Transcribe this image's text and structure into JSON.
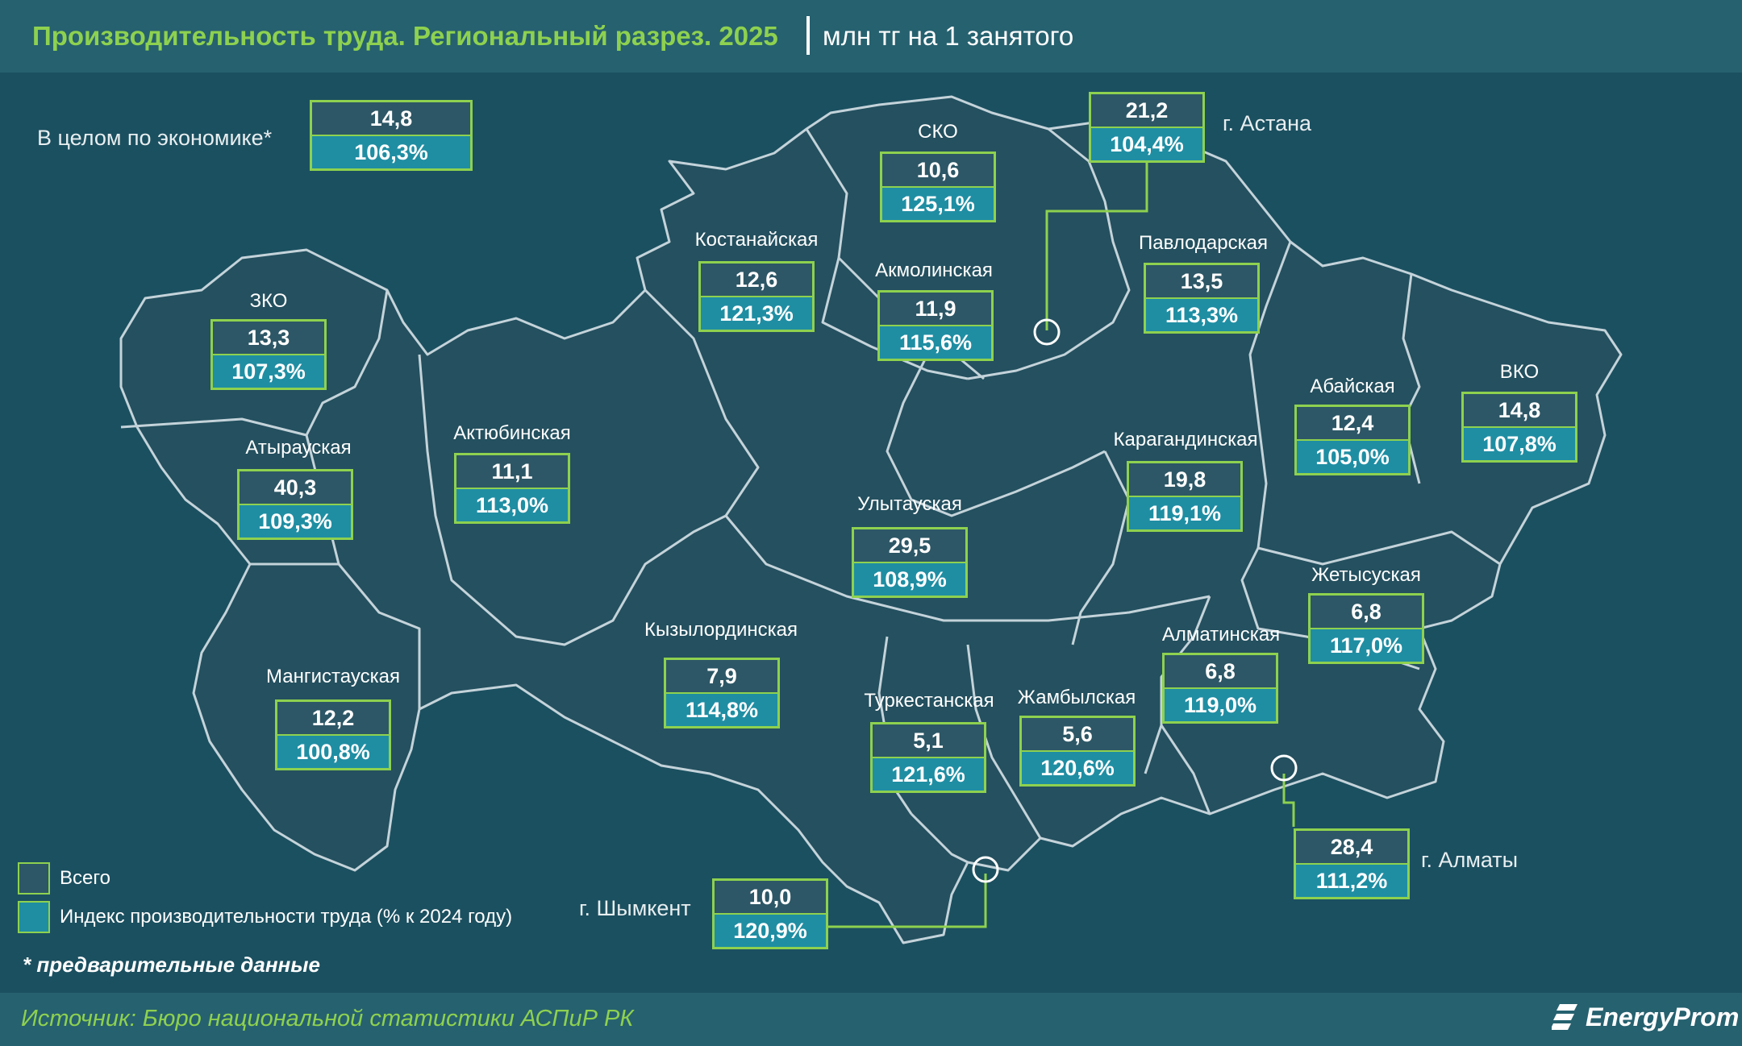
{
  "title": "Производительность труда. Региональный разрез. 2025",
  "units": "млн тг на 1 занятого",
  "overall": {
    "label": "В целом по экономике*",
    "total": "14,8",
    "index": "106,3%"
  },
  "regions": [
    {
      "id": "zko",
      "name": "ЗКО",
      "total": "13,3",
      "index": "107,3%"
    },
    {
      "id": "atyrau",
      "name": "Атырауская",
      "total": "40,3",
      "index": "109,3%"
    },
    {
      "id": "aktobe",
      "name": "Актюбинская",
      "total": "11,1",
      "index": "113,0%"
    },
    {
      "id": "mangystau",
      "name": "Мангистауская",
      "total": "12,2",
      "index": "100,8%"
    },
    {
      "id": "kostanay",
      "name": "Костанайская",
      "total": "12,6",
      "index": "121,3%"
    },
    {
      "id": "sko",
      "name": "СКО",
      "total": "10,6",
      "index": "125,1%"
    },
    {
      "id": "akmola",
      "name": "Акмолинская",
      "total": "11,9",
      "index": "115,6%"
    },
    {
      "id": "pavlodar",
      "name": "Павлодарская",
      "total": "13,5",
      "index": "113,3%"
    },
    {
      "id": "abay",
      "name": "Абайская",
      "total": "12,4",
      "index": "105,0%"
    },
    {
      "id": "vko",
      "name": "ВКО",
      "total": "14,8",
      "index": "107,8%"
    },
    {
      "id": "karaganda",
      "name": "Карагандинская",
      "total": "19,8",
      "index": "119,1%"
    },
    {
      "id": "ulytau",
      "name": "Улытауская",
      "total": "29,5",
      "index": "108,9%"
    },
    {
      "id": "kyzylorda",
      "name": "Кызылординская",
      "total": "7,9",
      "index": "114,8%"
    },
    {
      "id": "turkestan",
      "name": "Туркестанская",
      "total": "5,1",
      "index": "121,6%"
    },
    {
      "id": "zhambyl",
      "name": "Жамбылская",
      "total": "5,6",
      "index": "120,6%"
    },
    {
      "id": "almaty_reg",
      "name": "Алматинская",
      "total": "6,8",
      "index": "119,0%"
    },
    {
      "id": "zhetysu",
      "name": "Жетысуская",
      "total": "6,8",
      "index": "117,0%"
    }
  ],
  "cities": [
    {
      "id": "astana",
      "name": "г. Астана",
      "total": "21,2",
      "index": "104,4%"
    },
    {
      "id": "almaty",
      "name": "г. Алматы",
      "total": "28,4",
      "index": "111,2%"
    },
    {
      "id": "shymkent",
      "name": "г. Шымкент",
      "total": "10,0",
      "index": "120,9%"
    }
  ],
  "legend": {
    "total": "Всего",
    "index": "Индекс производительности труда (% к 2024 году)"
  },
  "note": "* предварительные данные",
  "source": "Источник: Бюро национальной статистики АСПиР РК",
  "brand": "EnergyProm",
  "colors": {
    "accent": "#8ed14f",
    "box_total": "#2d5766",
    "box_index": "#1f8ea3",
    "region_fill": "#24505f",
    "background": "#1b5060"
  }
}
